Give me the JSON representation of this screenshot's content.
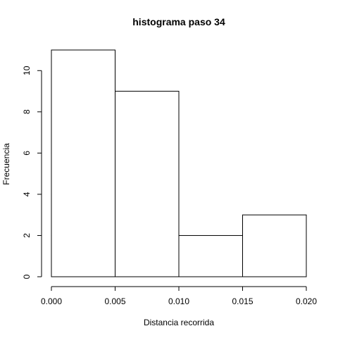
{
  "chart_data": {
    "type": "bar",
    "title": "histograma paso  34",
    "xlabel": "Distancia recorrida",
    "ylabel": "Frecuencia",
    "bins": [
      {
        "start": 0.0,
        "end": 0.005,
        "value": 11
      },
      {
        "start": 0.005,
        "end": 0.01,
        "value": 9
      },
      {
        "start": 0.01,
        "end": 0.015,
        "value": 2
      },
      {
        "start": 0.015,
        "end": 0.02,
        "value": 3
      }
    ],
    "x_ticks": [
      0.0,
      0.005,
      0.01,
      0.015,
      0.02
    ],
    "x_tick_labels": [
      "0.000",
      "0.005",
      "0.010",
      "0.015",
      "0.020"
    ],
    "y_ticks": [
      0,
      2,
      4,
      6,
      8,
      10
    ],
    "y_tick_labels": [
      "0",
      "2",
      "4",
      "6",
      "8",
      "10"
    ],
    "xlim": [
      0.0,
      0.02
    ],
    "ylim": [
      0,
      11
    ],
    "grid": false,
    "legend": "none",
    "colors": {
      "bar_fill": "#ffffff",
      "bar_stroke": "#000000"
    }
  }
}
